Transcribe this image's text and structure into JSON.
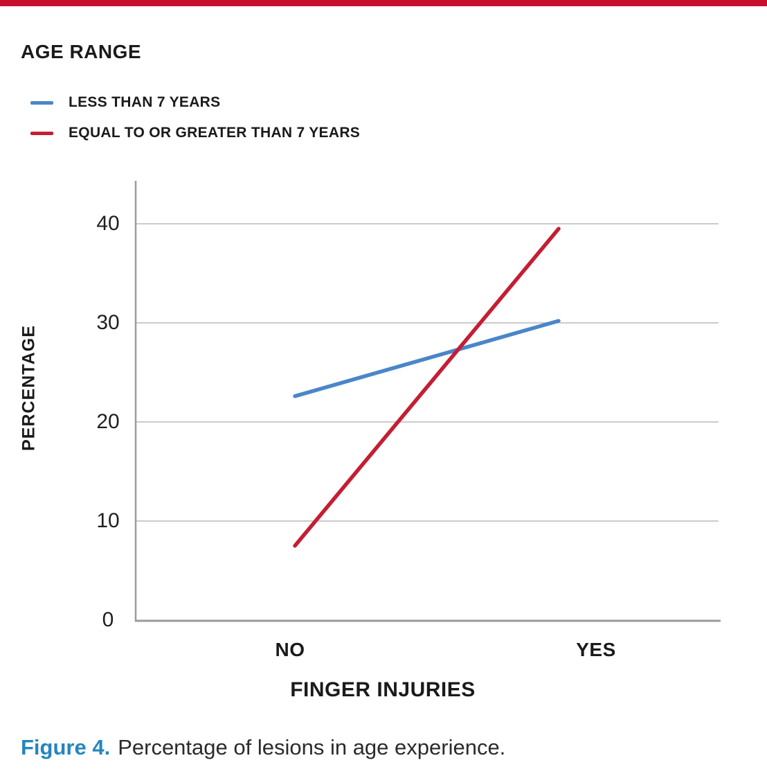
{
  "colors": {
    "top_bar_accent": "#c8102e",
    "series_blue": "#4a86c8",
    "series_red": "#c41e33",
    "caption_label_blue": "#2486bc",
    "gridline": "#cbcbcb",
    "axis": "#9a9a9a"
  },
  "chart_data": {
    "type": "line",
    "legend_title": "AGE RANGE",
    "categories": [
      "NO",
      "YES"
    ],
    "series": [
      {
        "name": "LESS THAN 7 YEARS",
        "color": "#4a86c8",
        "values": [
          22.6,
          30.2
        ]
      },
      {
        "name": "EQUAL TO OR GREATER THAN 7 YEARS",
        "color": "#c41e33",
        "values": [
          7.5,
          39.5
        ]
      }
    ],
    "xlabel": "FINGER INJURIES",
    "ylabel": "PERCENTAGE",
    "ylim": [
      0,
      44.5
    ],
    "yticks": [
      0,
      10,
      20,
      30,
      40
    ],
    "grid": "horizontal-gridlines-only",
    "legend_position": "top-left",
    "frame": "left-and-bottom-axes-only"
  },
  "caption": {
    "label": "Figure 4.",
    "text": "Percentage of lesions in age experience."
  }
}
